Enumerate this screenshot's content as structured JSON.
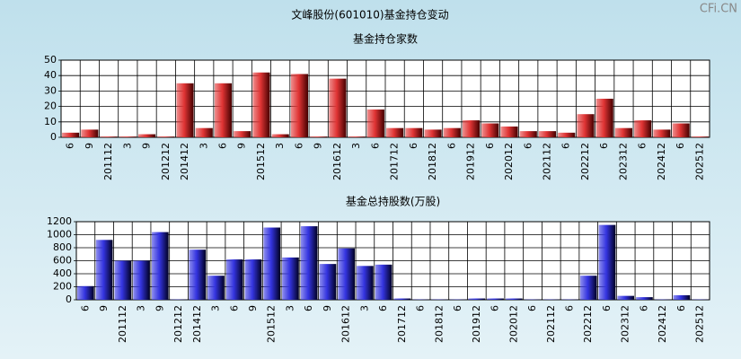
{
  "title": "文峰股份(601010)基金持仓变动",
  "watermark": "CFi.CN",
  "chart_data": [
    {
      "type": "bar",
      "title": "基金持仓家数",
      "color": "#e03434",
      "categories": [
        "6",
        "9",
        "201112",
        "3",
        "9",
        "201212",
        "201412",
        "3",
        "6",
        "9",
        "201512",
        "3",
        "6",
        "9",
        "201612",
        "3",
        "6",
        "201712",
        "6",
        "201812",
        "6",
        "201912",
        "6",
        "202012",
        "6",
        "202112",
        "6",
        "202212",
        "6",
        "202312",
        "6",
        "202412",
        "6",
        "202512"
      ],
      "values": [
        3,
        5,
        0.5,
        0.5,
        2,
        0.5,
        35,
        6,
        35,
        4,
        42,
        2,
        41,
        0.5,
        38,
        0.5,
        18,
        6,
        6,
        5,
        6,
        11,
        9,
        7,
        4,
        4,
        3,
        15,
        25,
        6,
        11,
        5,
        9,
        0.5
      ],
      "ylim": [
        0,
        50
      ],
      "yticks": [
        0,
        10,
        20,
        30,
        40,
        50
      ],
      "grid": true
    },
    {
      "type": "bar",
      "title": "基金总持股数(万股)",
      "color": "#3434e0",
      "categories": [
        "6",
        "9",
        "201112",
        "3",
        "9",
        "201212",
        "201412",
        "3",
        "6",
        "9",
        "201512",
        "3",
        "6",
        "9",
        "201612",
        "3",
        "6",
        "201712",
        "6",
        "201812",
        "6",
        "201912",
        "6",
        "202012",
        "6",
        "202112",
        "6",
        "202212",
        "6",
        "202312",
        "6",
        "202412",
        "6",
        "202512"
      ],
      "values": [
        210,
        920,
        600,
        600,
        1040,
        5,
        770,
        370,
        620,
        620,
        1110,
        650,
        1130,
        550,
        790,
        520,
        540,
        20,
        5,
        5,
        5,
        20,
        20,
        20,
        5,
        5,
        5,
        370,
        1150,
        60,
        40,
        5,
        70,
        5
      ],
      "ylim": [
        0,
        1200
      ],
      "yticks": [
        0,
        200,
        400,
        600,
        800,
        1000,
        1200
      ],
      "grid": true
    }
  ]
}
